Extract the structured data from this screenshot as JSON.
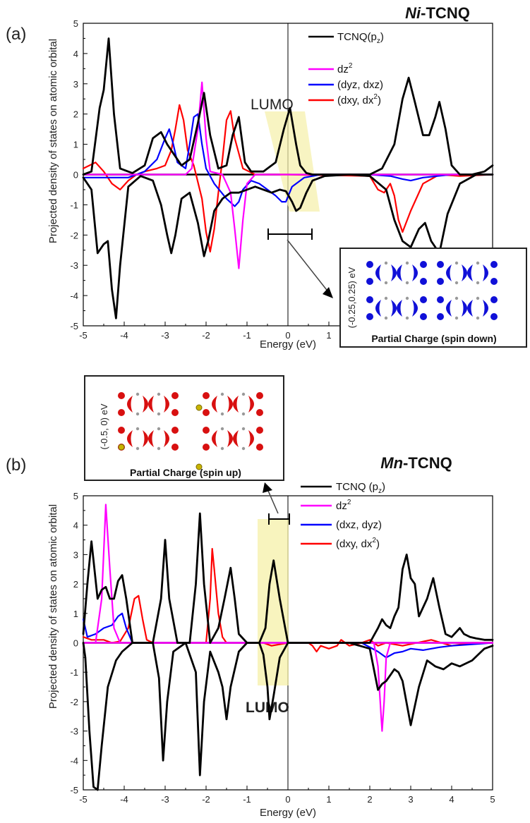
{
  "chart_data": [
    {
      "panel_label": "(a)",
      "type": "line",
      "title": "Ni-TCNQ",
      "title_parts": {
        "metal": "Ni",
        "rest": "-TCNQ"
      },
      "xlabel": "Energy (eV)",
      "ylabel": "Projected density of states on atomic orbital",
      "xlim": [
        -5,
        5
      ],
      "ylim": [
        -5,
        5
      ],
      "xticks": [
        "-5",
        "-4",
        "-3",
        "-2",
        "-1",
        "0",
        "1",
        "2",
        "3",
        "4",
        "5"
      ],
      "yticks": [
        "5",
        "4",
        "3",
        "2",
        "1",
        "0",
        "-1",
        "-2",
        "-3",
        "-4",
        "-5"
      ],
      "legend": [
        {
          "name": "TCNQ(p",
          "sub": "z",
          "tail": ")",
          "sup": ""
        },
        {
          "name": "dz",
          "sub": "",
          "tail": "",
          "sup": "2"
        },
        {
          "name": "(dyz, dxz)",
          "sub": "",
          "tail": "",
          "sup": ""
        },
        {
          "name": "(dxy, dx",
          "sub": "",
          "tail": ")",
          "sup": "2"
        }
      ],
      "legend_position": "top-right",
      "colors": [
        "#000000",
        "#ff00ff",
        "#0000ff",
        "#ff0000"
      ],
      "series": [
        {
          "x": [
            -5,
            -4.8,
            -4.6,
            -4.5,
            -4.38,
            -4.25,
            -4.1,
            -3.8,
            -3.5,
            -3.3,
            -3.1,
            -2.95,
            -2.75,
            -2.6,
            -2.4,
            -2.2,
            -2.05,
            -1.9,
            -1.7,
            -1.5,
            -1.35,
            -1.2,
            -1.05,
            -0.9,
            -0.6,
            -0.3,
            -0.1,
            0.05,
            0.2,
            0.3,
            0.45,
            0.6,
            0.9,
            1.3,
            1.7,
            2.0,
            2.3,
            2.6,
            2.8,
            2.95,
            3.1,
            3.3,
            3.45,
            3.6,
            3.7,
            3.85,
            4.0,
            4.2,
            4.5,
            4.8,
            5
          ],
          "values": [
            0,
            0.1,
            2.2,
            2.8,
            4.5,
            2.0,
            0.2,
            0.05,
            0.3,
            1.2,
            1.4,
            1.0,
            0.6,
            0.3,
            0.5,
            1.7,
            2.7,
            1.3,
            0.2,
            0.3,
            1.3,
            1.9,
            0.4,
            0.1,
            0.1,
            0.4,
            1.5,
            2.2,
            1.0,
            0.3,
            0.05,
            0,
            0,
            0,
            0,
            0,
            0.2,
            1.0,
            2.5,
            3.2,
            2.4,
            1.3,
            1.3,
            1.9,
            2.4,
            1.5,
            0.3,
            0,
            0,
            0.1,
            0.3
          ]
        },
        {
          "x": [
            -5,
            -2.5,
            -2.35,
            -2.2,
            -2.1,
            -2.0,
            -1.9,
            -1.6,
            -1.4,
            -1.3,
            -1.2,
            -1.1,
            -1.0,
            -0.8,
            5
          ],
          "values": [
            0,
            0,
            0.2,
            1.5,
            3.05,
            1.2,
            0.1,
            0,
            -0.6,
            -1.8,
            -3.1,
            -1.5,
            -0.3,
            0,
            0
          ]
        },
        {
          "x": [
            -5,
            -4.6,
            -4.3,
            -3.9,
            -3.5,
            -3.2,
            -3.0,
            -2.9,
            -2.8,
            -2.7,
            -2.5,
            -2.4,
            -2.3,
            -2.2,
            -2.1,
            -2.0,
            -1.8,
            -1.5,
            -1.3,
            -1.2,
            -1.1,
            -0.9,
            -0.7,
            -0.5,
            -0.3,
            -0.15,
            -0.05,
            0.1,
            0.4,
            0.8,
            1.5,
            2.0,
            2.5,
            2.8,
            3.0,
            3.3,
            4.0,
            5
          ],
          "values": [
            -0.1,
            -0.1,
            -0.1,
            -0.1,
            0.1,
            0.5,
            1.2,
            1.5,
            1.0,
            0.4,
            0.2,
            1.0,
            1.9,
            2.0,
            1.0,
            0.2,
            -0.3,
            -0.8,
            -1.05,
            -0.9,
            -0.5,
            -0.2,
            -0.3,
            -0.5,
            -0.7,
            -0.9,
            -0.9,
            -0.4,
            -0.1,
            0,
            0,
            0,
            -0.05,
            -0.15,
            -0.2,
            -0.1,
            0,
            0
          ]
        },
        {
          "x": [
            -5,
            -4.7,
            -4.5,
            -4.3,
            -4.1,
            -3.9,
            -3.7,
            -3.5,
            -3.2,
            -3.0,
            -2.85,
            -2.75,
            -2.65,
            -2.55,
            -2.45,
            -2.3,
            -2.1,
            -2.0,
            -1.9,
            -1.8,
            -1.7,
            -1.6,
            -1.5,
            -1.4,
            -1.3,
            -1.1,
            -0.8,
            0,
            2.0,
            2.2,
            2.35,
            2.5,
            2.6,
            2.7,
            2.8,
            3.0,
            3.3,
            3.7,
            4.2,
            5
          ],
          "values": [
            0.2,
            0.4,
            0.1,
            -0.3,
            -0.5,
            -0.2,
            0,
            0.1,
            0.2,
            0.3,
            0.8,
            1.5,
            2.3,
            1.8,
            0.8,
            0.3,
            -0.8,
            -1.9,
            -2.55,
            -1.8,
            -0.6,
            0.5,
            1.8,
            2.1,
            1.2,
            0.2,
            0,
            0,
            -0.05,
            -0.5,
            -0.6,
            -0.3,
            -0.7,
            -1.5,
            -1.9,
            -1.2,
            -0.3,
            0,
            -0.05,
            0
          ]
        }
      ],
      "annotations": [
        "LUMO"
      ],
      "inset": {
        "side_label": "(-0.25,0.25) eV",
        "caption": "Partial Charge (spin down)"
      }
    },
    {
      "panel_label": "(b)",
      "type": "line",
      "title": "Mn-TCNQ",
      "title_parts": {
        "metal": "Mn",
        "rest": "-TCNQ"
      },
      "xlabel": "Energy (eV)",
      "ylabel": "Projected density of states on atomic orbital",
      "xlim": [
        -5,
        5
      ],
      "ylim": [
        -5,
        5
      ],
      "xticks": [
        "-5",
        "-4",
        "-3",
        "-2",
        "-1",
        "0",
        "1",
        "2",
        "3",
        "4",
        "5"
      ],
      "yticks": [
        "5",
        "4",
        "3",
        "2",
        "1",
        "0",
        "-1",
        "-2",
        "-3",
        "-4",
        "-5"
      ],
      "legend": [
        {
          "name": "TCNQ (p",
          "sub": "z",
          "tail": ")",
          "sup": ""
        },
        {
          "name": "dz",
          "sub": "",
          "tail": "",
          "sup": "2"
        },
        {
          "name": "(dxz, dyz)",
          "sub": "",
          "tail": "",
          "sup": ""
        },
        {
          "name": "(dxy, dx",
          "sub": "",
          "tail": ")",
          "sup": "2"
        }
      ],
      "legend_position": "top-right",
      "colors": [
        "#000000",
        "#ff00ff",
        "#0000ff",
        "#ff0000"
      ],
      "series": [
        {
          "x": [
            -5,
            -4.9,
            -4.8,
            -4.75,
            -4.65,
            -4.55,
            -4.45,
            -4.35,
            -4.25,
            -4.15,
            -4.05,
            -3.95,
            -3.8,
            -3.3,
            -3.1,
            -3.0,
            -2.9,
            -2.7,
            -2.4,
            -2.25,
            -2.15,
            -2.05,
            -1.9,
            -1.7,
            -1.55,
            -1.4,
            -1.3,
            -1.2,
            -1.0,
            -0.7,
            -0.55,
            -0.45,
            -0.35,
            -0.2,
            0,
            1.5,
            2.0,
            2.2,
            2.3,
            2.4,
            2.5,
            2.6,
            2.7,
            2.8,
            2.9,
            3.0,
            3.1,
            3.2,
            3.4,
            3.55,
            3.7,
            3.85,
            4.0,
            4.2,
            4.3,
            4.45,
            4.6,
            4.8,
            5
          ],
          "values": [
            0.3,
            2.0,
            3.45,
            2.8,
            1.5,
            1.8,
            1.9,
            1.5,
            1.5,
            2.1,
            2.3,
            1.5,
            0,
            0,
            1.5,
            3.5,
            1.5,
            0,
            0,
            2.0,
            4.4,
            2.0,
            0,
            0.5,
            1.5,
            2.55,
            1.5,
            0.3,
            0,
            0,
            0.5,
            2.0,
            2.8,
            1.5,
            0,
            0,
            0,
            0.5,
            0.8,
            0.6,
            0.5,
            0.9,
            1.2,
            2.5,
            3.0,
            2.2,
            2.0,
            0.9,
            1.5,
            2.2,
            1.2,
            0.3,
            0.2,
            0.5,
            0.3,
            0.2,
            0.15,
            0.1,
            0.1
          ]
        },
        {
          "x": [
            -5,
            -4.7,
            -4.55,
            -4.45,
            -4.35,
            -4.25,
            -4.1,
            5
          ],
          "values": [
            0,
            0,
            1.5,
            4.7,
            2.5,
            0.5,
            0,
            0
          ]
        },
        {
          "x": [
            -5,
            -4.9,
            -4.7,
            -4.5,
            -4.3,
            -4.15,
            -4.05,
            -3.95,
            -3.8,
            -3.4,
            -2.0,
            1.8,
            2.2,
            2.4,
            2.6,
            2.8,
            3.0,
            3.3,
            3.7,
            4.0,
            4.5,
            5
          ],
          "values": [
            0.8,
            0.2,
            0.3,
            0.5,
            0.6,
            0.9,
            1.0,
            0.5,
            0,
            0,
            0,
            0,
            -0.3,
            -0.5,
            -0.35,
            -0.3,
            -0.2,
            -0.25,
            -0.15,
            -0.1,
            -0.05,
            0
          ]
        },
        {
          "x": [
            -5,
            -4.8,
            -4.5,
            -4.3,
            -4.1,
            -3.9,
            -3.75,
            -3.65,
            -3.55,
            -3.45,
            -3.3,
            -2.0,
            -1.9,
            -1.85,
            -1.8,
            -1.7,
            -1.6,
            -1.5,
            -0.6,
            -0.4,
            0,
            0.5,
            0.6,
            0.7,
            0.8,
            1.0,
            1.2,
            1.3,
            1.5,
            1.8,
            2.0,
            2.2,
            2.4,
            2.8,
            3.5,
            4.0,
            4.5,
            5
          ],
          "values": [
            0.2,
            0.1,
            0.1,
            0,
            0.05,
            0.5,
            1.5,
            1.6,
            0.8,
            0.1,
            0,
            0,
            1.5,
            3.2,
            2.5,
            1.0,
            0.2,
            0,
            0,
            -0.1,
            0,
            0,
            -0.1,
            -0.3,
            -0.1,
            -0.2,
            -0.1,
            0.1,
            -0.1,
            0,
            0.1,
            -0.1,
            0,
            -0.1,
            0.1,
            -0.1,
            0,
            0
          ]
        }
      ],
      "neg_series": [
        {
          "x": [
            -5,
            -4.95,
            -4.85,
            -4.75,
            -4.65,
            -4.55,
            -4.4,
            -4.2,
            -4.05,
            -3.8,
            -3.3,
            -3.15,
            -3.05,
            -2.95,
            -2.8,
            -2.5,
            -2.25,
            -2.15,
            -2.05,
            -1.9,
            -1.7,
            -1.6,
            -1.5,
            -1.4,
            -1.2,
            -1.0,
            -0.7,
            -0.6,
            -0.5,
            -0.45,
            -0.35,
            -0.2,
            0,
            1.5,
            2.0,
            2.2,
            2.3,
            2.4,
            2.5,
            2.6,
            2.7,
            2.8,
            3.0,
            3.2,
            3.4,
            3.6,
            3.8,
            4.0,
            4.2,
            4.5,
            4.8,
            5
          ],
          "values": [
            0,
            -0.5,
            -3.0,
            -4.9,
            -5.0,
            -3.5,
            -1.5,
            -0.6,
            -0.3,
            0,
            0,
            -1.2,
            -4.0,
            -2.0,
            -0.3,
            0,
            -1.0,
            -4.5,
            -2.0,
            -0.3,
            -1.0,
            -1.5,
            -2.6,
            -1.5,
            -0.3,
            0,
            0,
            -0.4,
            -1.5,
            -2.6,
            -1.8,
            -0.5,
            0,
            0,
            -0.2,
            -1.6,
            -1.4,
            -1.3,
            -1.1,
            -0.9,
            -1.0,
            -1.3,
            -2.8,
            -1.5,
            -0.6,
            -0.8,
            -0.9,
            -0.7,
            -0.8,
            -0.6,
            -0.2,
            -0.1
          ]
        },
        {
          "x": [
            -5,
            2.1,
            2.2,
            2.3,
            2.35,
            2.4,
            2.5,
            5
          ],
          "values": [
            0,
            0,
            -0.8,
            -3.0,
            -2.0,
            -0.5,
            0,
            0
          ]
        }
      ],
      "annotations": [
        "LUMO"
      ],
      "inset": {
        "side_label": "(-0.5, 0) eV",
        "caption": "Partial Charge (spin up)"
      }
    }
  ]
}
